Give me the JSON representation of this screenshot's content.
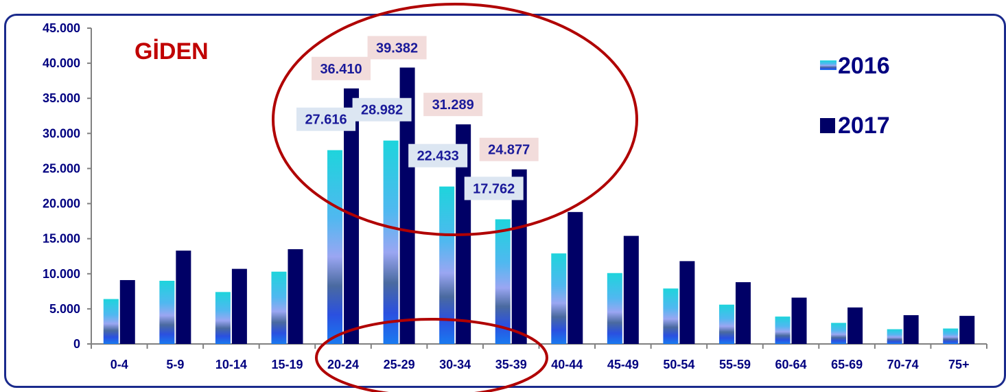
{
  "chart_data": {
    "type": "bar",
    "title": "GİDEN",
    "categories": [
      "0-4",
      "5-9",
      "10-14",
      "15-19",
      "20-24",
      "25-29",
      "30-34",
      "35-39",
      "40-44",
      "45-49",
      "50-54",
      "55-59",
      "60-64",
      "65-69",
      "70-74",
      "75+"
    ],
    "series": [
      {
        "name": "2016",
        "values": [
          6400,
          9000,
          7400,
          10300,
          27616,
          28982,
          22433,
          17762,
          12900,
          10100,
          7900,
          5600,
          3900,
          3000,
          2100,
          2200
        ]
      },
      {
        "name": "2017",
        "values": [
          9100,
          13300,
          10700,
          13500,
          36410,
          39382,
          31289,
          24877,
          18800,
          15400,
          11800,
          8800,
          6600,
          5200,
          4100,
          4000
        ]
      }
    ],
    "data_labels": {
      "2016": {
        "20-24": "27.616",
        "25-29": "28.982",
        "30-34": "22.433",
        "35-39": "17.762"
      },
      "2017": {
        "20-24": "36.410",
        "25-29": "39.382",
        "30-34": "31.289",
        "35-39": "24.877"
      }
    },
    "y_ticks": [
      "0",
      "5.000",
      "10.000",
      "15.000",
      "20.000",
      "25.000",
      "30.000",
      "35.000",
      "40.000",
      "45.000"
    ],
    "ylim": [
      0,
      45000
    ],
    "xlabel": "",
    "ylabel": "",
    "legend": "right",
    "grid": false,
    "colors": {
      "2016_top": "#22d0e0",
      "2016_mid": "#8a9af0",
      "2016_bottom": "#1a60f0",
      "2017": "#000066",
      "ellipse": "#b00000",
      "frame": "#1a2a8c",
      "label_bg_2016": "#dce6f2",
      "label_bg_2017": "#f2dcdb"
    }
  }
}
